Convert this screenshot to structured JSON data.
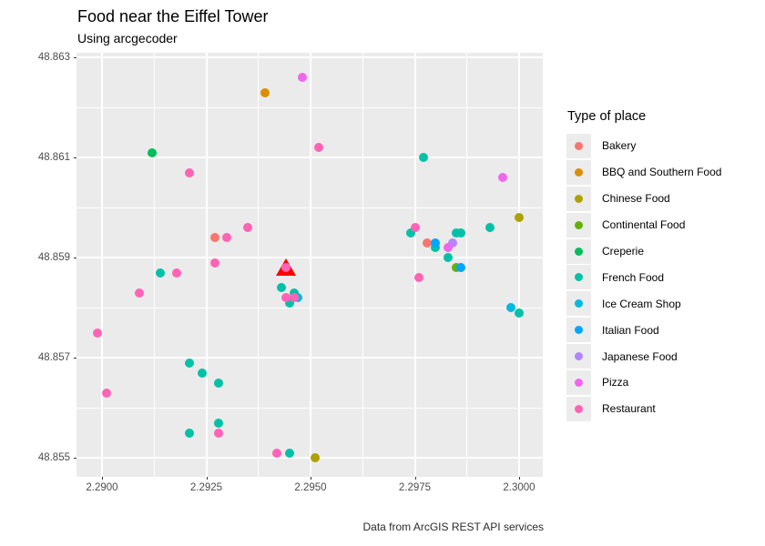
{
  "header": {
    "title": "Food near the Eiffel Tower",
    "subtitle": "Using arcgecoder",
    "caption": "Data from ArcGIS REST API services"
  },
  "chart_data": {
    "type": "scatter",
    "title": "Food near the Eiffel Tower",
    "subtitle": "Using arcgecoder",
    "caption": "Data from ArcGIS REST API services",
    "xlabel": "",
    "ylabel": "",
    "grid": "major-and-minor",
    "panel_background": "#EBEBEB",
    "legend_position": "right",
    "legend_title": "Type of place",
    "x_ticks": [
      2.29,
      2.2925,
      2.295,
      2.2975,
      2.3
    ],
    "x_tick_labels": [
      "2.2900",
      "2.2925",
      "2.2950",
      "2.2975",
      "2.3000"
    ],
    "y_ticks": [
      48.863,
      48.861,
      48.859,
      48.857,
      48.855
    ],
    "y_tick_labels": [
      "48.863",
      "48.861",
      "48.859",
      "48.857",
      "48.855"
    ],
    "xlim": [
      2.28939,
      2.30057
    ],
    "ylim": [
      48.85462,
      48.86309
    ],
    "eiffel_marker": {
      "label": "eiffel-tower-marker",
      "shape": "triangle-up",
      "color": "#FF0000",
      "x": 2.2944,
      "y": 48.8588
    },
    "series": [
      {
        "name": "Bakery",
        "color": "#F8766D",
        "points": [
          [
            2.2927,
            48.8594
          ],
          [
            2.2978,
            48.8593
          ]
        ]
      },
      {
        "name": "BBQ and Southern Food",
        "color": "#DB8E00",
        "points": [
          [
            2.2939,
            48.8623
          ]
        ]
      },
      {
        "name": "Chinese Food",
        "color": "#AEA200",
        "points": [
          [
            2.2951,
            48.855
          ],
          [
            2.3,
            48.8598
          ]
        ]
      },
      {
        "name": "Continental Food",
        "color": "#64B200",
        "points": [
          [
            2.2985,
            48.8588
          ]
        ]
      },
      {
        "name": "Creperie",
        "color": "#00BD5C",
        "points": [
          [
            2.2912,
            48.8611
          ]
        ]
      },
      {
        "name": "French Food",
        "color": "#00C1A7",
        "points": [
          [
            2.2914,
            48.8587
          ],
          [
            2.2921,
            48.8569
          ],
          [
            2.2924,
            48.8567
          ],
          [
            2.2928,
            48.8565
          ],
          [
            2.2928,
            48.8557
          ],
          [
            2.2921,
            48.8555
          ],
          [
            2.2943,
            48.8584
          ],
          [
            2.2946,
            48.8583
          ],
          [
            2.2945,
            48.8581
          ],
          [
            2.2945,
            48.8551
          ],
          [
            2.2974,
            48.8595
          ],
          [
            2.298,
            48.8592
          ],
          [
            2.2983,
            48.859
          ],
          [
            2.2985,
            48.8595
          ],
          [
            2.2986,
            48.8595
          ],
          [
            2.2993,
            48.8596
          ],
          [
            2.2977,
            48.861
          ],
          [
            2.3,
            48.8579
          ]
        ]
      },
      {
        "name": "Ice Cream Shop",
        "color": "#00BADE",
        "points": [
          [
            2.2947,
            48.8582
          ],
          [
            2.2998,
            48.858
          ]
        ]
      },
      {
        "name": "Italian Food",
        "color": "#00A6FF",
        "points": [
          [
            2.298,
            48.8593
          ],
          [
            2.2986,
            48.8588
          ]
        ]
      },
      {
        "name": "Japanese Food",
        "color": "#B385FF",
        "points": [
          [
            2.2984,
            48.8593
          ]
        ]
      },
      {
        "name": "Pizza",
        "color": "#EF67EB",
        "points": [
          [
            2.2948,
            48.8626
          ],
          [
            2.2983,
            48.8592
          ],
          [
            2.2996,
            48.8606
          ]
        ]
      },
      {
        "name": "Restaurant",
        "color": "#FF63B6",
        "points": [
          [
            2.2921,
            48.8607
          ],
          [
            2.293,
            48.8594
          ],
          [
            2.2927,
            48.8589
          ],
          [
            2.2918,
            48.8587
          ],
          [
            2.2909,
            48.8583
          ],
          [
            2.2899,
            48.8575
          ],
          [
            2.2901,
            48.8563
          ],
          [
            2.2928,
            48.8555
          ],
          [
            2.2944,
            48.8588
          ],
          [
            2.2944,
            48.8582
          ],
          [
            2.2946,
            48.8582
          ],
          [
            2.2952,
            48.8612
          ],
          [
            2.2935,
            48.8596
          ],
          [
            2.2975,
            48.8596
          ],
          [
            2.2976,
            48.8586
          ],
          [
            2.2942,
            48.8551
          ]
        ]
      }
    ]
  }
}
